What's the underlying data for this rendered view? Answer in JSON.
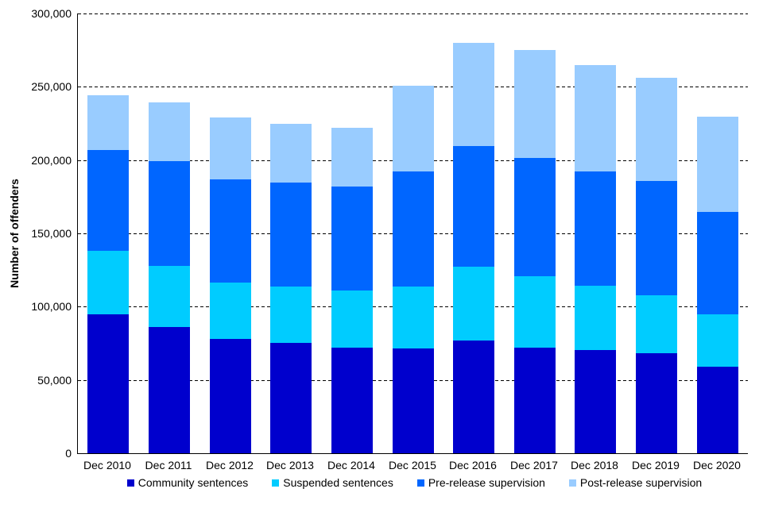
{
  "chart_data": {
    "type": "bar",
    "stacked": true,
    "title": "",
    "xlabel": "",
    "ylabel": "Number of offenders",
    "ylim": [
      0,
      300000
    ],
    "ytick_interval": 50000,
    "ytick_labels": [
      "0",
      "50,000",
      "100,000",
      "150,000",
      "200,000",
      "250,000",
      "300,000"
    ],
    "grid": "horizontal-dashed",
    "legend_position": "bottom",
    "categories": [
      "Dec 2010",
      "Dec 2011",
      "Dec 2012",
      "Dec 2013",
      "Dec 2014",
      "Dec 2015",
      "Dec 2016",
      "Dec 2017",
      "Dec 2018",
      "Dec 2019",
      "Dec 2020"
    ],
    "series": [
      {
        "name": "Community sentences",
        "color": "#0000CD",
        "values": [
          95000,
          86000,
          78000,
          75000,
          72000,
          71500,
          77000,
          72000,
          70500,
          68500,
          59000
        ]
      },
      {
        "name": "Suspended sentences",
        "color": "#00CCFF",
        "values": [
          43000,
          42000,
          38500,
          38500,
          39000,
          42000,
          50000,
          48500,
          43500,
          39500,
          35500
        ]
      },
      {
        "name": "Pre-release supervision",
        "color": "#0066FF",
        "values": [
          69000,
          71500,
          70500,
          71000,
          71000,
          79000,
          82500,
          81000,
          78500,
          78000,
          70000
        ]
      },
      {
        "name": "Post-release supervision",
        "color": "#99CCFF",
        "values": [
          37000,
          40000,
          42000,
          40000,
          40000,
          58000,
          70500,
          73500,
          72500,
          70000,
          65000
        ]
      }
    ],
    "totals": [
      244000,
      239500,
      229000,
      224500,
      222000,
      250500,
      280000,
      275000,
      265000,
      256000,
      229500
    ],
    "axis_color": "#000000",
    "background_color": "#ffffff"
  }
}
